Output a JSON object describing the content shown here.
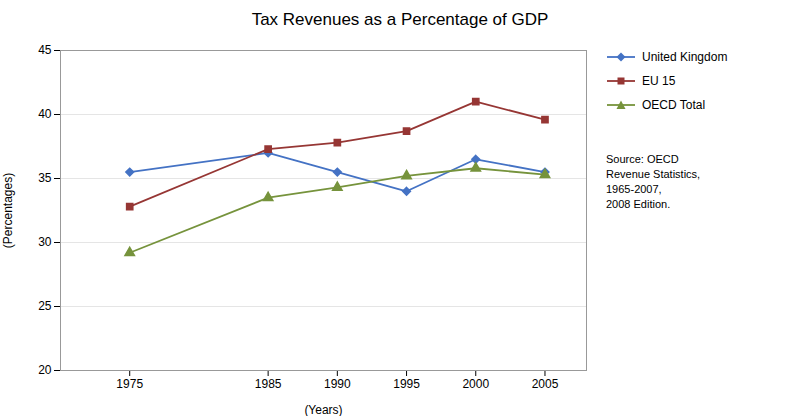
{
  "chart_data": {
    "type": "line",
    "title": "Tax Revenues as a Percentage of GDP",
    "xlabel": "(Years)",
    "ylabel": "(Percentages)",
    "x": [
      1975,
      1985,
      1990,
      1995,
      2000,
      2005
    ],
    "series": [
      {
        "name": "United Kingdom",
        "color": "#4472C4",
        "marker": "diamond",
        "values": [
          35.5,
          37.0,
          35.5,
          34.0,
          36.5,
          35.5
        ]
      },
      {
        "name": "EU 15",
        "color": "#963634",
        "marker": "square",
        "values": [
          32.8,
          37.3,
          37.8,
          38.7,
          41.0,
          39.6
        ]
      },
      {
        "name": "OECD Total",
        "color": "#76933C",
        "marker": "triangle",
        "values": [
          29.2,
          33.5,
          34.3,
          35.2,
          35.8,
          35.3
        ]
      }
    ],
    "xlim": [
      1970,
      2008
    ],
    "xticks": [
      1975,
      1985,
      1990,
      1995,
      2000,
      2005
    ],
    "ylim": [
      20,
      45
    ],
    "yticks": [
      20,
      25,
      30,
      35,
      40,
      45
    ],
    "grid": true,
    "legend": "right",
    "annotations": [
      "Source: OECD\nRevenue Statistics,\n1965-2007,\n2008 Edition."
    ]
  }
}
